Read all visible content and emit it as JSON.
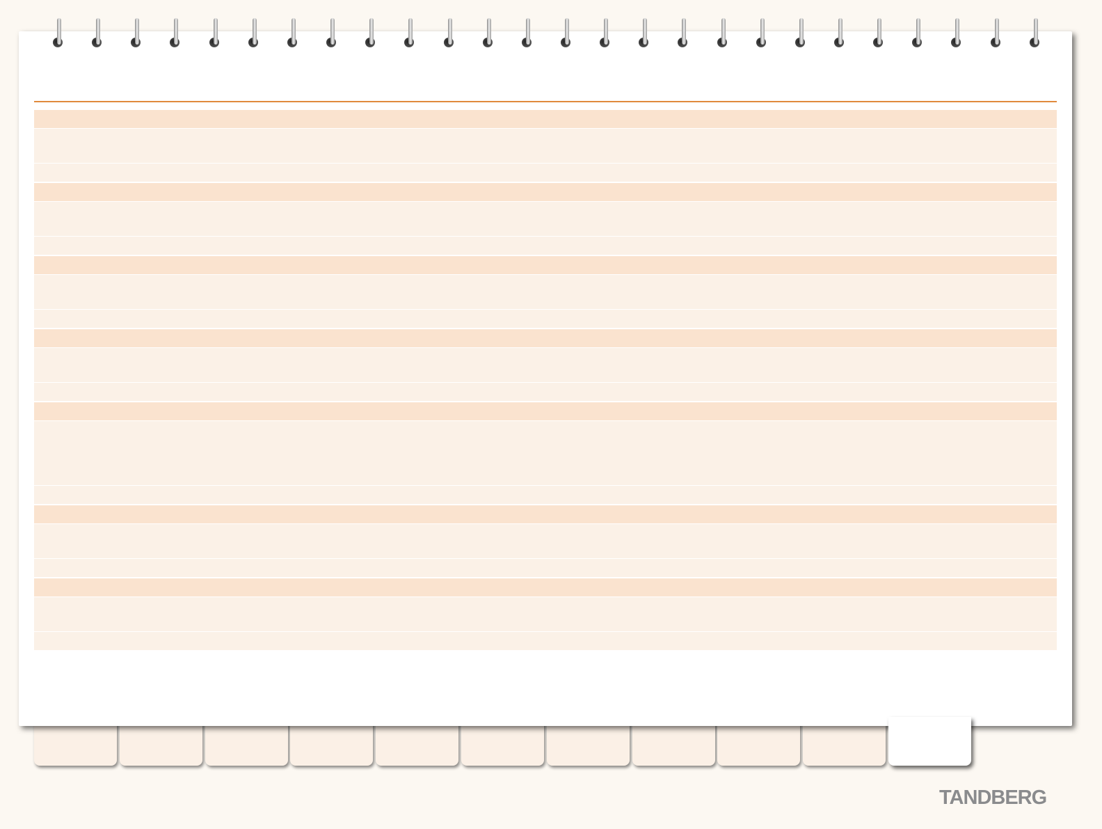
{
  "brand": {
    "logo_text": "TANDBERG"
  },
  "notebook": {
    "ring_count": 26,
    "section_count": 7,
    "tab_count": 11,
    "active_tab_index": 10
  },
  "colors": {
    "accent_rule": "#e08a3c",
    "section_header": "#fae3cf",
    "section_body": "#fbf1e7",
    "background": "#fcf8f2",
    "logo": "#8a8b8d"
  }
}
